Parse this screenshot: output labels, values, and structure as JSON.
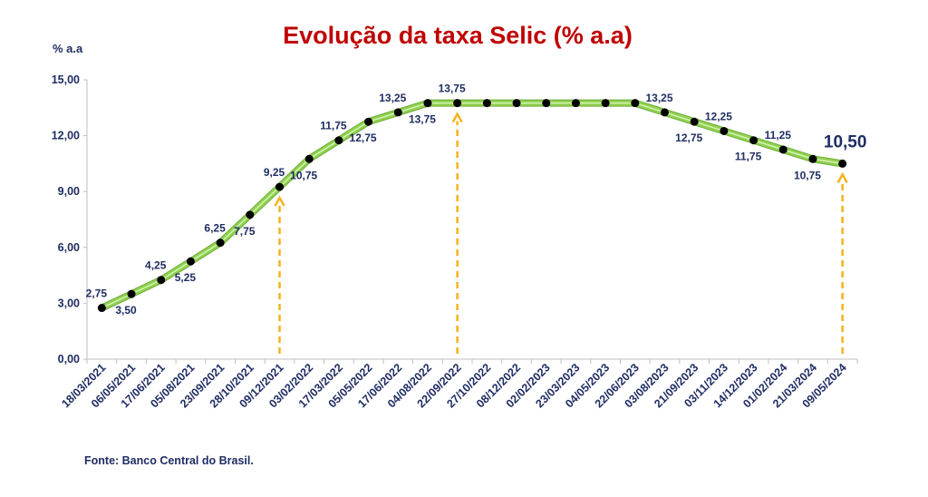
{
  "title": "Evolução da taxa Selic (% a.a)",
  "source": "Fonte: Banco Central do Brasil.",
  "colors": {
    "title": "#c00000",
    "text": "#1f2d63",
    "line": "#8fd14f",
    "marker": "#000000",
    "arrow": "#f6b21b",
    "axis": "#bfbfbf"
  },
  "chart_data": {
    "type": "line",
    "ylabel": "% a.a",
    "xlabel": "",
    "ylim": [
      0,
      15
    ],
    "yticks": [
      "0,00",
      "3,00",
      "6,00",
      "9,00",
      "12,00",
      "15,00"
    ],
    "grid": false,
    "categories": [
      "18/03/2021",
      "06/05/2021",
      "17/06/2021",
      "05/08/2021",
      "23/09/2021",
      "28/10/2021",
      "09/12/2021",
      "03/02/2022",
      "17/03/2022",
      "05/05/2022",
      "17/06/2022",
      "04/08/2022",
      "22/09/2022",
      "27/10/2022",
      "08/12/2022",
      "02/02/2023",
      "23/03/2023",
      "04/05/2023",
      "22/06/2023",
      "03/08/2023",
      "21/09/2023",
      "03/11/2023",
      "14/12/2023",
      "01/02/2024",
      "21/03/2024",
      "09/05/2024"
    ],
    "series": [
      {
        "values": [
          2.75,
          3.5,
          4.25,
          5.25,
          6.25,
          7.75,
          9.25,
          10.75,
          11.75,
          12.75,
          13.25,
          13.75,
          13.75,
          13.75,
          13.75,
          13.75,
          13.75,
          13.75,
          13.75,
          13.25,
          12.75,
          12.25,
          11.75,
          11.25,
          10.75,
          10.5
        ]
      }
    ],
    "data_labels": [
      {
        "index": 0,
        "text": "2,75",
        "pos": "above"
      },
      {
        "index": 1,
        "text": "3,50",
        "pos": "below"
      },
      {
        "index": 2,
        "text": "4,25",
        "pos": "above"
      },
      {
        "index": 3,
        "text": "5,25",
        "pos": "below"
      },
      {
        "index": 4,
        "text": "6,25",
        "pos": "above"
      },
      {
        "index": 5,
        "text": "7,75",
        "pos": "below"
      },
      {
        "index": 6,
        "text": "9,25",
        "pos": "above"
      },
      {
        "index": 7,
        "text": "10,75",
        "pos": "below"
      },
      {
        "index": 8,
        "text": "11,75",
        "pos": "above"
      },
      {
        "index": 9,
        "text": "12,75",
        "pos": "below"
      },
      {
        "index": 10,
        "text": "13,25",
        "pos": "above"
      },
      {
        "index": 11,
        "text": "13,75",
        "pos": "below"
      },
      {
        "index": 12,
        "text": "13,75",
        "pos": "above"
      },
      {
        "index": 19,
        "text": "13,25",
        "pos": "above"
      },
      {
        "index": 20,
        "text": "12,75",
        "pos": "below"
      },
      {
        "index": 21,
        "text": "12,25",
        "pos": "above"
      },
      {
        "index": 22,
        "text": "11,75",
        "pos": "below"
      },
      {
        "index": 23,
        "text": "11,25",
        "pos": "above"
      },
      {
        "index": 24,
        "text": "10,75",
        "pos": "below"
      },
      {
        "index": 25,
        "text": "10,50",
        "pos": "above",
        "emphasis": true
      }
    ],
    "arrows_at": [
      "09/12/2021",
      "22/09/2022",
      "09/05/2024"
    ]
  }
}
